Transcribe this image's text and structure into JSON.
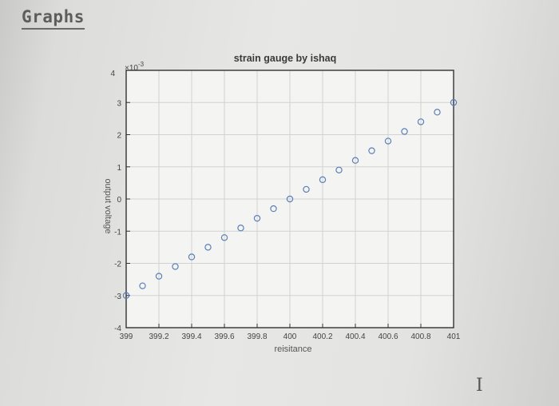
{
  "page": {
    "heading": "Graphs",
    "cursor_icon": "text-cursor-icon"
  },
  "chart_data": {
    "type": "scatter",
    "title": "strain gauge by ishaq",
    "xlabel": "reisitance",
    "ylabel": "output voltage",
    "y_multiplier_label": "×10",
    "y_multiplier_exponent": "-3",
    "xlim": [
      399,
      401
    ],
    "ylim": [
      -4,
      4
    ],
    "x_ticks": [
      399,
      399.2,
      399.4,
      399.6,
      399.8,
      400,
      400.2,
      400.4,
      400.6,
      400.8,
      401
    ],
    "x_tick_labels": [
      "399",
      "399.2",
      "399.4",
      "399.6",
      "399.8",
      "400",
      "400.2",
      "400.4",
      "400.6",
      "400.8",
      "401"
    ],
    "y_ticks": [
      -4,
      -3,
      -2,
      -1,
      0,
      1,
      2,
      3,
      4
    ],
    "y_tick_labels": [
      "-4",
      "-3",
      "-2",
      "-1",
      "0",
      "1",
      "2",
      "3",
      "4"
    ],
    "grid": true,
    "marker": "circle",
    "series": [
      {
        "color": "#5b7fb8",
        "x": [
          399.0,
          399.1,
          399.2,
          399.3,
          399.4,
          399.5,
          399.6,
          399.7,
          399.8,
          399.9,
          400.0,
          400.1,
          400.2,
          400.3,
          400.4,
          400.5,
          400.6,
          400.7,
          400.8,
          400.9,
          401.0
        ],
        "y": [
          -3.0,
          -2.7,
          -2.4,
          -2.1,
          -1.8,
          -1.5,
          -1.2,
          -0.9,
          -0.6,
          -0.3,
          0.0,
          0.3,
          0.6,
          0.9,
          1.2,
          1.5,
          1.8,
          2.1,
          2.4,
          2.7,
          3.0
        ]
      }
    ]
  }
}
